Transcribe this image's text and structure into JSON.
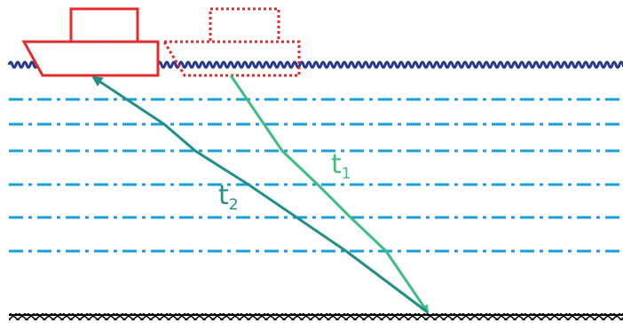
{
  "labels": [
    {
      "text": "t",
      "sub": "1"
    },
    {
      "text": "t",
      "sub": "2"
    }
  ]
}
